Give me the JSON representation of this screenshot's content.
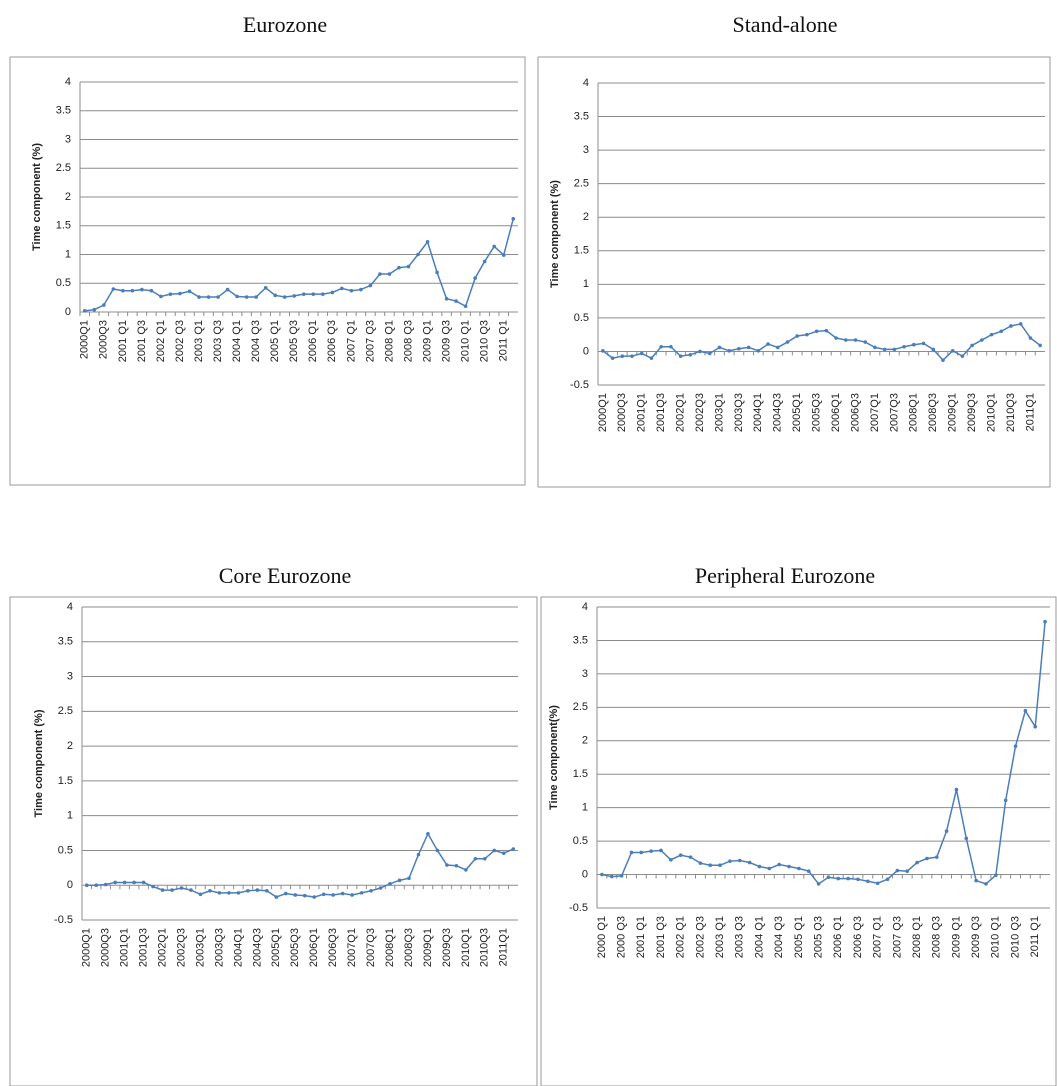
{
  "chart_data": [
    {
      "type": "line",
      "title": "Eurozone",
      "ylabel": "Time component (%)",
      "categories": [
        "2000Q1",
        null,
        "2000Q3",
        null,
        "2001 Q1",
        null,
        "2001 Q3",
        null,
        "2002 Q1",
        null,
        "2002 Q3",
        null,
        "2003 Q1",
        null,
        "2003 Q3",
        null,
        "2004 Q1",
        null,
        "2004 Q3",
        null,
        "2005 Q1",
        null,
        "2005 Q3",
        null,
        "2006 Q1",
        null,
        "2006 Q3",
        null,
        "2007 Q1",
        null,
        "2007 Q3",
        null,
        "2008 Q1",
        null,
        "2008 Q3",
        null,
        "2009 Q1",
        null,
        "2009 Q3",
        null,
        "2010 Q1",
        null,
        "2010 Q3",
        null,
        "2011 Q1",
        null
      ],
      "values": [
        0.02,
        0.04,
        0.12,
        0.4,
        0.37,
        0.37,
        0.39,
        0.37,
        0.27,
        0.31,
        0.32,
        0.36,
        0.26,
        0.26,
        0.26,
        0.39,
        0.27,
        0.26,
        0.26,
        0.42,
        0.29,
        0.26,
        0.28,
        0.31,
        0.31,
        0.31,
        0.34,
        0.41,
        0.37,
        0.39,
        0.46,
        0.66,
        0.66,
        0.77,
        0.79,
        1.0,
        1.22,
        0.69,
        0.23,
        0.19,
        0.1,
        0.59,
        0.88,
        1.14,
        0.99,
        1.62
      ],
      "color": "#4a7ebb",
      "ylim": [
        0,
        4
      ],
      "yticks": [
        0,
        0.5,
        1,
        1.5,
        2,
        2.5,
        3,
        3.5,
        4
      ],
      "grid": true
    },
    {
      "type": "line",
      "title": "Stand-alone",
      "ylabel": "Time component (%)",
      "categories": [
        "2000Q1",
        null,
        "2000Q3",
        null,
        "2001Q1",
        null,
        "2001Q3",
        null,
        "2002Q1",
        null,
        "2002Q3",
        null,
        "2003Q1",
        null,
        "2003Q3",
        null,
        "2004Q1",
        null,
        "2004Q3",
        null,
        "2005Q1",
        null,
        "2005Q3",
        null,
        "2006Q1",
        null,
        "2006Q3",
        null,
        "2007Q1",
        null,
        "2007Q3",
        null,
        "2008Q1",
        null,
        "2008Q3",
        null,
        "2009Q1",
        null,
        "2009Q3",
        null,
        "2010Q1",
        null,
        "2010Q3",
        null,
        "2011Q1",
        null
      ],
      "values": [
        0.01,
        -0.1,
        -0.07,
        -0.07,
        -0.03,
        -0.1,
        0.07,
        0.07,
        -0.07,
        -0.05,
        0.0,
        -0.03,
        0.06,
        0.01,
        0.04,
        0.06,
        0.01,
        0.11,
        0.06,
        0.14,
        0.23,
        0.25,
        0.3,
        0.31,
        0.2,
        0.17,
        0.17,
        0.14,
        0.06,
        0.03,
        0.03,
        0.07,
        0.1,
        0.12,
        0.03,
        -0.13,
        0.01,
        -0.07,
        0.09,
        0.17,
        0.25,
        0.3,
        0.38,
        0.41,
        0.2,
        0.09
      ],
      "color": "#4a7ebb",
      "ylim": [
        -0.5,
        4
      ],
      "yticks": [
        -0.5,
        0,
        0.5,
        1,
        1.5,
        2,
        2.5,
        3,
        3.5,
        4
      ],
      "grid": true
    },
    {
      "type": "line",
      "title": "Core Eurozone",
      "ylabel": "Time component (%)",
      "categories": [
        "2000Q1",
        null,
        "2000Q3",
        null,
        "2001Q1",
        null,
        "2001Q3",
        null,
        "2002Q1",
        null,
        "2002Q3",
        null,
        "2003Q1",
        null,
        "2003Q3",
        null,
        "2004Q1",
        null,
        "2004Q3",
        null,
        "2005Q1",
        null,
        "2005Q3",
        null,
        "2006Q1",
        null,
        "2006Q3",
        null,
        "2007Q1",
        null,
        "2007Q3",
        null,
        "2008Q1",
        null,
        "2008Q3",
        null,
        "2009Q1",
        null,
        "2009Q3",
        null,
        "2010Q1",
        null,
        "2010Q3",
        null,
        "2011Q1",
        null
      ],
      "values": [
        0,
        0,
        0.01,
        0.04,
        0.04,
        0.04,
        0.04,
        -0.02,
        -0.07,
        -0.07,
        -0.04,
        -0.07,
        -0.13,
        -0.08,
        -0.11,
        -0.11,
        -0.11,
        -0.08,
        -0.07,
        -0.08,
        -0.17,
        -0.12,
        -0.14,
        -0.15,
        -0.17,
        -0.13,
        -0.14,
        -0.12,
        -0.14,
        -0.11,
        -0.08,
        -0.04,
        0.02,
        0.07,
        0.1,
        0.44,
        0.74,
        0.5,
        0.29,
        0.28,
        0.22,
        0.38,
        0.38,
        0.5,
        0.46,
        0.52
      ],
      "color": "#4a7ebb",
      "ylim": [
        -0.5,
        4
      ],
      "yticks": [
        -0.5,
        0,
        0.5,
        1,
        1.5,
        2,
        2.5,
        3,
        3.5,
        4
      ],
      "grid": true
    },
    {
      "type": "line",
      "title": "Peripheral Eurozone",
      "ylabel": "Time component(%)",
      "categories": [
        "2000 Q1",
        null,
        "2000 Q3",
        null,
        "2001 Q1",
        null,
        "2001 Q3",
        null,
        "2002 Q1",
        null,
        "2002 Q3",
        null,
        "2003 Q1",
        null,
        "2003 Q3",
        null,
        "2004 Q1",
        null,
        "2004 Q3",
        null,
        "2005 Q1",
        null,
        "2005 Q3",
        null,
        "2006 Q1",
        null,
        "2006 Q3",
        null,
        "2007 Q1",
        null,
        "2007 Q3",
        null,
        "2008 Q1",
        null,
        "2008 Q3",
        null,
        "2009 Q1",
        null,
        "2009 Q3",
        null,
        "2010 Q1",
        null,
        "2010 Q3",
        null,
        "2011 Q1",
        null
      ],
      "values": [
        0,
        -0.03,
        -0.02,
        0.33,
        0.33,
        0.35,
        0.36,
        0.22,
        0.29,
        0.26,
        0.17,
        0.14,
        0.14,
        0.2,
        0.21,
        0.18,
        0.12,
        0.09,
        0.15,
        0.12,
        0.09,
        0.05,
        -0.14,
        -0.04,
        -0.06,
        -0.06,
        -0.07,
        -0.1,
        -0.13,
        -0.07,
        0.06,
        0.05,
        0.18,
        0.24,
        0.26,
        0.65,
        1.27,
        0.54,
        -0.09,
        -0.14,
        -0.01,
        1.11,
        1.92,
        2.45,
        2.21,
        3.78
      ],
      "color": "#4a7ebb",
      "ylim": [
        -0.5,
        4
      ],
      "yticks": [
        -0.5,
        0,
        0.5,
        1,
        1.5,
        2,
        2.5,
        3,
        3.5,
        4
      ],
      "grid": true
    }
  ]
}
